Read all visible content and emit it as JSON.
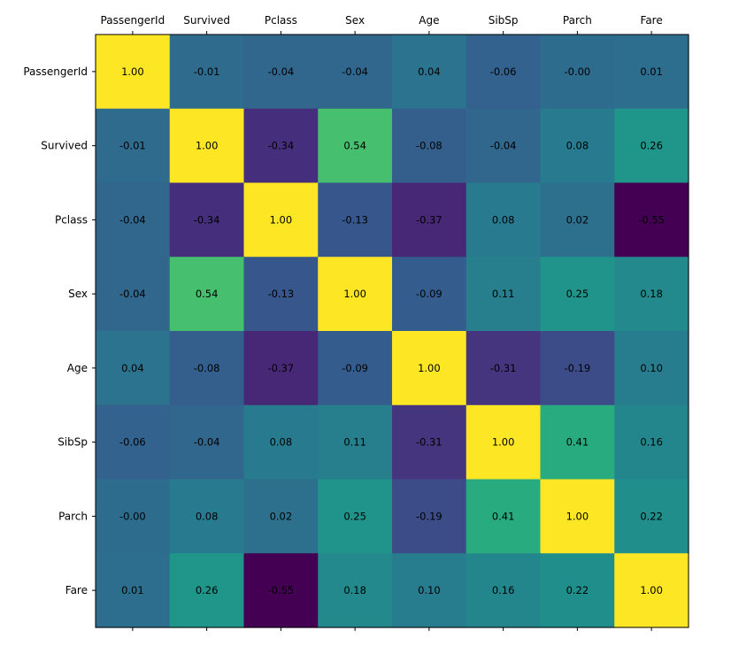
{
  "chart_data": {
    "type": "heatmap",
    "title": "",
    "xlabel": "",
    "ylabel": "",
    "x_labels": [
      "PassengerId",
      "Survived",
      "Pclass",
      "Sex",
      "Age",
      "SibSp",
      "Parch",
      "Fare"
    ],
    "y_labels": [
      "PassengerId",
      "Survived",
      "Pclass",
      "Sex",
      "Age",
      "SibSp",
      "Parch",
      "Fare"
    ],
    "values": [
      [
        1.0,
        -0.01,
        -0.04,
        -0.04,
        0.04,
        -0.06,
        -0.0,
        0.01
      ],
      [
        -0.01,
        1.0,
        -0.34,
        0.54,
        -0.08,
        -0.04,
        0.08,
        0.26
      ],
      [
        -0.04,
        -0.34,
        1.0,
        -0.13,
        -0.37,
        0.08,
        0.02,
        -0.55
      ],
      [
        -0.04,
        0.54,
        -0.13,
        1.0,
        -0.09,
        0.11,
        0.25,
        0.18
      ],
      [
        0.04,
        -0.08,
        -0.37,
        -0.09,
        1.0,
        -0.31,
        -0.19,
        0.1
      ],
      [
        -0.06,
        -0.04,
        0.08,
        0.11,
        -0.31,
        1.0,
        0.41,
        0.16
      ],
      [
        -0.0,
        0.08,
        0.02,
        0.25,
        -0.19,
        0.41,
        1.0,
        0.22
      ],
      [
        0.01,
        0.26,
        -0.55,
        0.18,
        0.1,
        0.16,
        0.22,
        1.0
      ]
    ],
    "cell_text": [
      [
        "1.00",
        "-0.01",
        "-0.04",
        "-0.04",
        "0.04",
        "-0.06",
        "-0.00",
        "0.01"
      ],
      [
        "-0.01",
        "1.00",
        "-0.34",
        "0.54",
        "-0.08",
        "-0.04",
        "0.08",
        "0.26"
      ],
      [
        "-0.04",
        "-0.34",
        "1.00",
        "-0.13",
        "-0.37",
        "0.08",
        "0.02",
        "-0.55"
      ],
      [
        "-0.04",
        "0.54",
        "-0.13",
        "1.00",
        "-0.09",
        "0.11",
        "0.25",
        "0.18"
      ],
      [
        "0.04",
        "-0.08",
        "-0.37",
        "-0.09",
        "1.00",
        "-0.31",
        "-0.19",
        "0.10"
      ],
      [
        "-0.06",
        "-0.04",
        "0.08",
        "0.11",
        "-0.31",
        "1.00",
        "0.41",
        "0.16"
      ],
      [
        "-0.00",
        "0.08",
        "0.02",
        "0.25",
        "-0.19",
        "0.41",
        "1.00",
        "0.22"
      ],
      [
        "0.01",
        "0.26",
        "-0.55",
        "0.18",
        "0.10",
        "0.16",
        "0.22",
        "1.00"
      ]
    ],
    "value_range": [
      -0.55,
      1.0
    ],
    "colormap": "viridis",
    "x_tick_position": "top",
    "grid": false,
    "legend": "none"
  }
}
